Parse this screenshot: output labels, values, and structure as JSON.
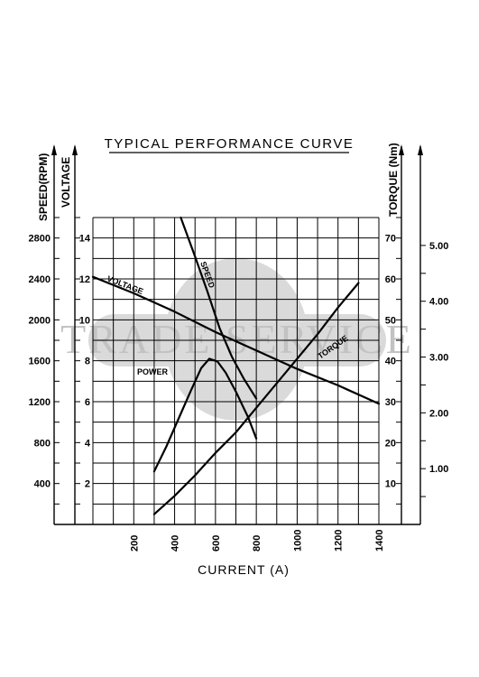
{
  "chart_data": {
    "type": "line",
    "title": "TYPICAL PERFORMANCE CURVE",
    "xlabel": "CURRENT (A)",
    "watermark": "TRADE SERVICE",
    "x_ticks": [
      200,
      400,
      600,
      800,
      1000,
      1200,
      1400
    ],
    "xlim": [
      0,
      1400
    ],
    "axes": {
      "speed": {
        "label": "SPEED(RPM)",
        "ticks": [
          400,
          800,
          1200,
          1600,
          2000,
          2400,
          2800
        ],
        "range": [
          0,
          3000
        ]
      },
      "voltage": {
        "label": "VOLTAGE",
        "ticks": [
          2,
          4,
          6,
          8,
          10,
          12,
          14
        ],
        "range": [
          0,
          15
        ]
      },
      "torque": {
        "label": "TORQUE (Nm)",
        "ticks": [
          10,
          20,
          30,
          40,
          50,
          60,
          70
        ],
        "range": [
          0,
          75
        ]
      },
      "power": {
        "ticks": [
          "1.00",
          "2.00",
          "3.00",
          "4.00",
          "5.00"
        ],
        "range": [
          0,
          5.5
        ]
      }
    },
    "series": [
      {
        "name": "SPEED",
        "axis": "speed",
        "x": [
          430,
          500,
          560,
          620,
          680,
          740,
          800
        ],
        "y": [
          3000,
          2620,
          2280,
          1920,
          1640,
          1420,
          1230
        ]
      },
      {
        "name": "VOLTAGE",
        "axis": "voltage",
        "x": [
          0,
          200,
          400,
          600,
          800,
          1000,
          1200,
          1400
        ],
        "y": [
          12.1,
          11.3,
          10.4,
          9.4,
          8.5,
          7.6,
          6.8,
          5.9
        ]
      },
      {
        "name": "POWER",
        "axis": "power",
        "x": [
          300,
          360,
          420,
          480,
          530,
          570,
          610,
          650,
          700,
          760,
          800
        ],
        "y": [
          0.95,
          1.4,
          1.9,
          2.4,
          2.8,
          2.97,
          2.92,
          2.72,
          2.38,
          1.92,
          1.54
        ]
      },
      {
        "name": "TORQUE",
        "axis": "torque",
        "x": [
          300,
          400,
          500,
          600,
          700,
          800,
          900,
          1000,
          1100,
          1200,
          1300
        ],
        "y": [
          2.5,
          7,
          12,
          17.5,
          22.5,
          28.5,
          34.5,
          40.5,
          46.5,
          53,
          59
        ]
      }
    ]
  }
}
